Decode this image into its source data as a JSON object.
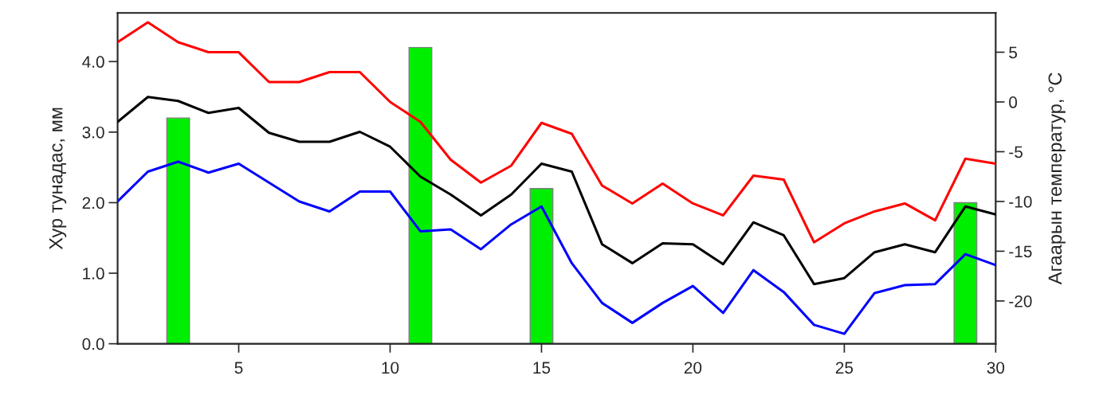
{
  "chart_data": {
    "type": "line",
    "ylabel": "Хур тунадас, мм",
    "y2label": "Агаарын температур, °C",
    "x": [
      1,
      2,
      3,
      4,
      5,
      6,
      7,
      8,
      9,
      10,
      11,
      12,
      13,
      14,
      15,
      16,
      17,
      18,
      19,
      20,
      21,
      22,
      23,
      24,
      25,
      26,
      27,
      28,
      29,
      30
    ],
    "xlim": [
      1,
      30
    ],
    "xticks": [
      5,
      10,
      15,
      20,
      25,
      30
    ],
    "ylim": [
      0,
      4.69
    ],
    "yticks": [
      {
        "value": 0,
        "label": "0.0"
      },
      {
        "value": 1,
        "label": "1.0"
      },
      {
        "value": 2,
        "label": "2.0"
      },
      {
        "value": 3,
        "label": "3.0"
      },
      {
        "value": 4,
        "label": "4.0"
      }
    ],
    "y2lim": [
      -24.3,
      8.95
    ],
    "y2ticks": [
      -20,
      -15,
      -10,
      -5,
      0,
      5
    ],
    "grid": false,
    "legend": false,
    "series": [
      {
        "type": "bar",
        "axis": "y",
        "color": "#00ee00",
        "values": [
          null,
          null,
          3.2,
          null,
          null,
          null,
          null,
          null,
          null,
          null,
          4.2,
          null,
          null,
          null,
          2.2,
          null,
          null,
          null,
          null,
          null,
          null,
          null,
          null,
          null,
          null,
          null,
          null,
          null,
          2.0,
          null
        ]
      },
      {
        "axis": "y2",
        "color": "#ff0000",
        "values": [
          6.0,
          8.0,
          6.0,
          5.0,
          5.0,
          2.0,
          2.0,
          3.0,
          3.0,
          0.0,
          -2.0,
          -5.8,
          -8.1,
          -6.4,
          -2.1,
          -3.2,
          -8.4,
          -10.2,
          -8.2,
          -10.2,
          -11.4,
          -7.4,
          -7.8,
          -14.1,
          -12.2,
          -11.0,
          -10.2,
          -11.9,
          -5.7,
          -6.2
        ]
      },
      {
        "axis": "y2",
        "color": "#000000",
        "values": [
          -2.0,
          0.5,
          0.1,
          -1.1,
          -0.6,
          -3.1,
          -4.0,
          -4.0,
          -3.0,
          -4.5,
          -7.5,
          -9.3,
          -11.4,
          -9.3,
          -6.2,
          -7.0,
          -14.3,
          -16.2,
          -14.2,
          -14.3,
          -16.3,
          -12.1,
          -13.4,
          -18.3,
          -17.7,
          -15.1,
          -14.3,
          -15.1,
          -10.5,
          -11.3
        ]
      },
      {
        "axis": "y2",
        "color": "#0000ff",
        "values": [
          -10.0,
          -7.0,
          -6.0,
          -7.1,
          -6.2,
          -8.1,
          -10.0,
          -11.0,
          -9.0,
          -9.0,
          -13.0,
          -12.8,
          -14.8,
          -12.3,
          -10.5,
          -16.2,
          -20.2,
          -22.2,
          -20.2,
          -18.5,
          -21.2,
          -16.9,
          -19.1,
          -22.4,
          -23.3,
          -19.2,
          -18.4,
          -18.3,
          -15.3,
          -16.4
        ]
      }
    ]
  }
}
